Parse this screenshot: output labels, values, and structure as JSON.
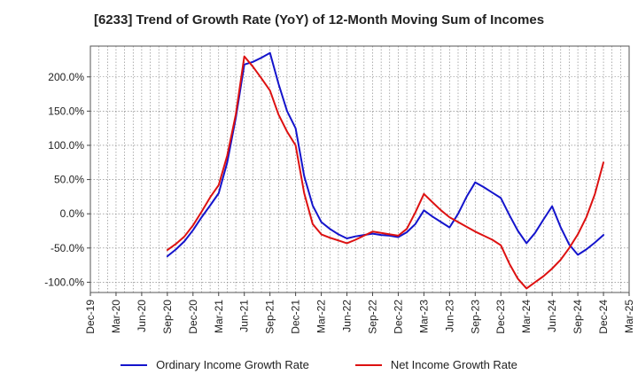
{
  "chart_data": {
    "type": "line",
    "title": "[6233]  Trend of Growth Rate (YoY) of 12-Month Moving Sum of Incomes",
    "xlabel": "",
    "ylabel": "",
    "x_tick_labels": [
      "Dec-19",
      "Mar-20",
      "Jun-20",
      "Sep-20",
      "Dec-20",
      "Mar-21",
      "Jun-21",
      "Sep-21",
      "Dec-21",
      "Mar-22",
      "Jun-22",
      "Sep-22",
      "Dec-22",
      "Mar-23",
      "Jun-23",
      "Sep-23",
      "Dec-23",
      "Mar-24",
      "Jun-24",
      "Sep-24",
      "Dec-24",
      "Mar-25"
    ],
    "y_tick_values": [
      200,
      150,
      100,
      50,
      0,
      -50,
      -100
    ],
    "y_tick_labels": [
      "200.0%",
      "150.0%",
      "100.0%",
      "50.0%",
      "0.0%",
      "-50.0%",
      "-100.0%"
    ],
    "ylim": [
      -115,
      245
    ],
    "grid": true,
    "legend_position": "bottom",
    "series": [
      {
        "name": "Ordinary Income Growth Rate",
        "color": "#1414cc",
        "x": [
          "Sep-20",
          "Oct-20",
          "Nov-20",
          "Dec-20",
          "Jan-21",
          "Feb-21",
          "Mar-21",
          "Apr-21",
          "May-21",
          "Jun-21",
          "Jul-21",
          "Aug-21",
          "Sep-21",
          "Oct-21",
          "Nov-21",
          "Dec-21",
          "Jan-22",
          "Feb-22",
          "Mar-22",
          "Apr-22",
          "May-22",
          "Jun-22",
          "Jul-22",
          "Aug-22",
          "Sep-22",
          "Oct-22",
          "Nov-22",
          "Dec-22",
          "Jan-23",
          "Feb-23",
          "Mar-23",
          "Apr-23",
          "May-23",
          "Jun-23",
          "Jul-23",
          "Aug-23",
          "Sep-23",
          "Oct-23",
          "Nov-23",
          "Dec-23",
          "Jan-24",
          "Feb-24",
          "Mar-24",
          "Apr-24",
          "May-24",
          "Jun-24",
          "Jul-24",
          "Aug-24",
          "Sep-24",
          "Oct-24",
          "Nov-24",
          "Dec-24"
        ],
        "values": [
          -62,
          -52,
          -40,
          -24,
          -5,
          12,
          30,
          75,
          140,
          218,
          222,
          228,
          235,
          190,
          150,
          125,
          55,
          12,
          -12,
          -22,
          -30,
          -36,
          -33,
          -31,
          -29,
          -31,
          -32,
          -34,
          -27,
          -15,
          5,
          -4,
          -12,
          -20,
          0,
          25,
          46,
          39,
          31,
          23,
          -2,
          -25,
          -43,
          -28,
          -8,
          11,
          -20,
          -45,
          -60,
          -52,
          -42,
          -31
        ]
      },
      {
        "name": "Net Income Growth Rate",
        "color": "#dd1111",
        "x": [
          "Sep-20",
          "Oct-20",
          "Nov-20",
          "Dec-20",
          "Jan-21",
          "Feb-21",
          "Mar-21",
          "Apr-21",
          "May-21",
          "Jun-21",
          "Jul-21",
          "Aug-21",
          "Sep-21",
          "Oct-21",
          "Nov-21",
          "Dec-21",
          "Jan-22",
          "Feb-22",
          "Mar-22",
          "Apr-22",
          "May-22",
          "Jun-22",
          "Jul-22",
          "Aug-22",
          "Sep-22",
          "Oct-22",
          "Nov-22",
          "Dec-22",
          "Jan-23",
          "Feb-23",
          "Mar-23",
          "Apr-23",
          "May-23",
          "Jun-23",
          "Jul-23",
          "Aug-23",
          "Sep-23",
          "Oct-23",
          "Nov-23",
          "Dec-23",
          "Jan-24",
          "Feb-24",
          "Mar-24",
          "Apr-24",
          "May-24",
          "Jun-24",
          "Jul-24",
          "Aug-24",
          "Sep-24",
          "Oct-24",
          "Nov-24",
          "Dec-24"
        ],
        "values": [
          -53,
          -44,
          -33,
          -17,
          3,
          24,
          42,
          85,
          145,
          230,
          215,
          198,
          180,
          145,
          120,
          100,
          30,
          -15,
          -30,
          -35,
          -39,
          -43,
          -38,
          -32,
          -26,
          -28,
          -30,
          -32,
          -22,
          2,
          29,
          17,
          5,
          -5,
          -12,
          -19,
          -26,
          -32,
          -38,
          -46,
          -73,
          -95,
          -109,
          -100,
          -91,
          -80,
          -67,
          -50,
          -30,
          -5,
          29,
          75
        ]
      }
    ]
  }
}
